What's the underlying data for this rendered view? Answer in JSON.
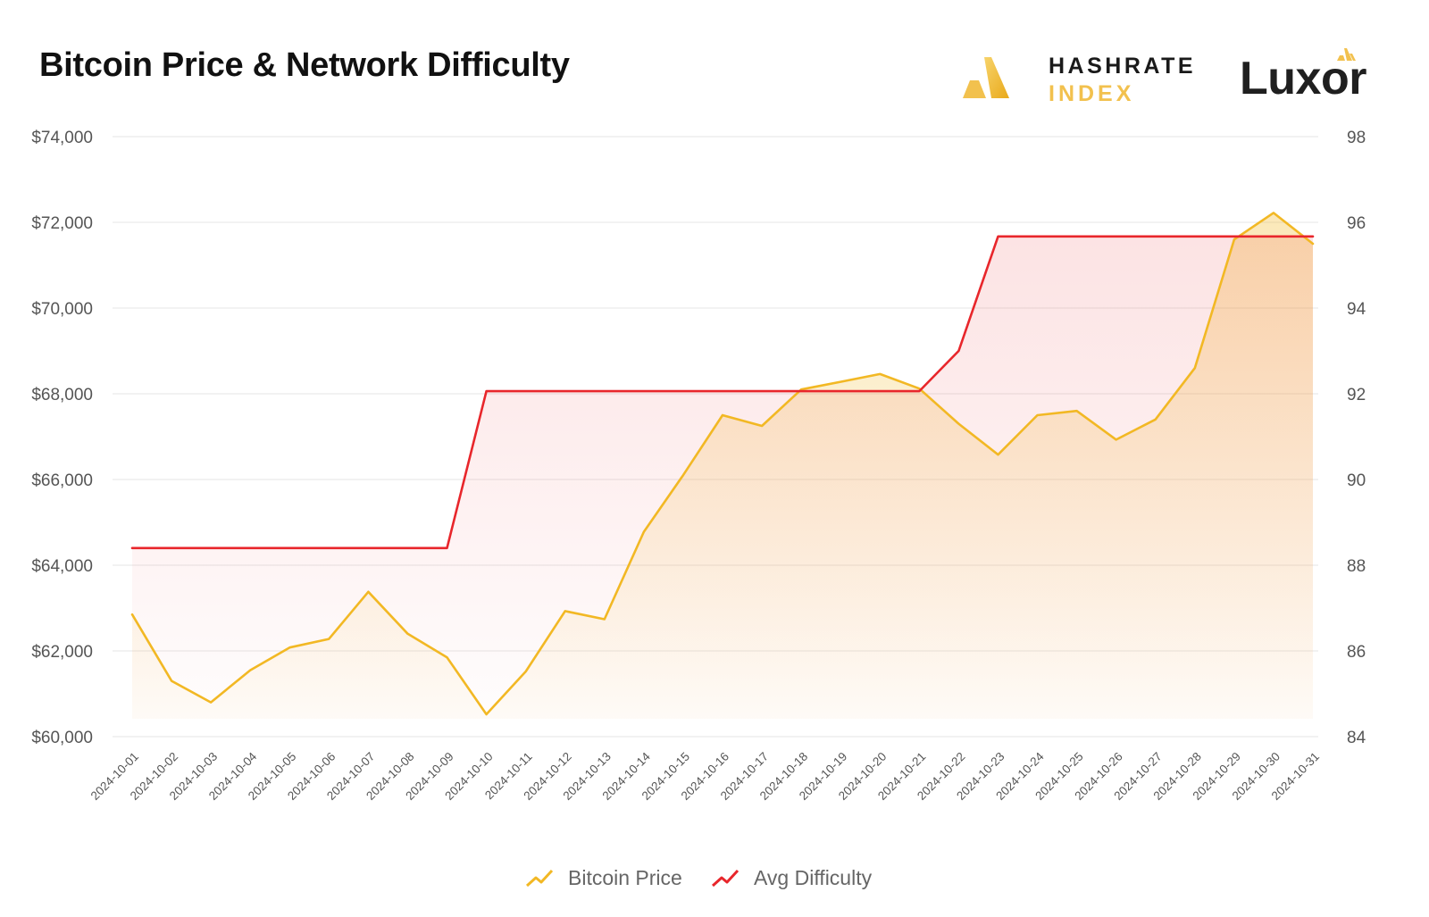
{
  "header": {
    "title": "Bitcoin Price & Network Difficulty",
    "brand_hashrate_line1": "HASHRATE",
    "brand_hashrate_line2": "INDEX",
    "brand_luxor": "Luxor"
  },
  "colors": {
    "price": "#f2b824",
    "difficulty": "#e8262b",
    "grid": "#e6e6e6",
    "axis_text": "#555555",
    "brand_gold": "#f2c14e"
  },
  "chart_data": {
    "type": "line",
    "title": "Bitcoin Price & Network Difficulty",
    "x": [
      "2024-10-01",
      "2024-10-02",
      "2024-10-03",
      "2024-10-04",
      "2024-10-05",
      "2024-10-06",
      "2024-10-07",
      "2024-10-08",
      "2024-10-09",
      "2024-10-10",
      "2024-10-11",
      "2024-10-12",
      "2024-10-13",
      "2024-10-14",
      "2024-10-15",
      "2024-10-16",
      "2024-10-17",
      "2024-10-18",
      "2024-10-19",
      "2024-10-20",
      "2024-10-21",
      "2024-10-22",
      "2024-10-23",
      "2024-10-24",
      "2024-10-25",
      "2024-10-26",
      "2024-10-27",
      "2024-10-28",
      "2024-10-29",
      "2024-10-30",
      "2024-10-31"
    ],
    "y_left": {
      "min": 60000,
      "max": 74000,
      "ticks": [
        60000,
        62000,
        64000,
        66000,
        68000,
        70000,
        72000,
        74000
      ],
      "tick_labels": [
        "$60,000",
        "$62,000",
        "$64,000",
        "$66,000",
        "$68,000",
        "$70,000",
        "$72,000",
        "$74,000"
      ]
    },
    "y_right": {
      "min": 84,
      "max": 98,
      "ticks": [
        84,
        86,
        88,
        90,
        92,
        94,
        96,
        98
      ],
      "tick_labels": [
        "84",
        "86",
        "88",
        "90",
        "92",
        "94",
        "96",
        "98"
      ]
    },
    "grid": true,
    "legend_position": "bottom-center",
    "series": [
      {
        "name": "Bitcoin Price",
        "axis": "left",
        "color": "#f2b824",
        "values": [
          62850,
          61300,
          60800,
          61550,
          62080,
          62280,
          63380,
          62400,
          61850,
          60520,
          61520,
          62930,
          62740,
          64780,
          66100,
          67500,
          67250,
          68100,
          68280,
          68460,
          68120,
          67300,
          66580,
          67500,
          67600,
          66930,
          67400,
          68600,
          71600,
          72220,
          71500
        ]
      },
      {
        "name": "Avg Difficulty",
        "axis": "right",
        "color": "#e8262b",
        "values": [
          88.4,
          88.4,
          88.4,
          88.4,
          88.4,
          88.4,
          88.4,
          88.4,
          88.4,
          92.06,
          92.06,
          92.06,
          92.06,
          92.06,
          92.06,
          92.06,
          92.06,
          92.06,
          92.06,
          92.06,
          92.06,
          93.0,
          95.67,
          95.67,
          95.67,
          95.67,
          95.67,
          95.67,
          95.67,
          95.67,
          95.67
        ]
      }
    ]
  }
}
